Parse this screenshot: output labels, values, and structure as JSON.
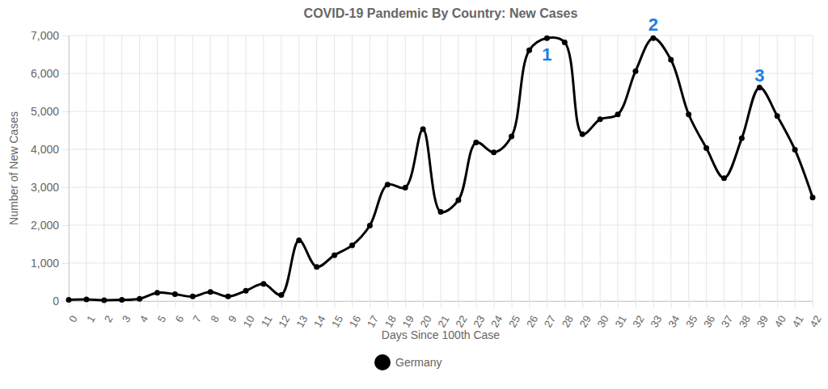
{
  "chart_data": {
    "type": "line",
    "title": "COVID-19 Pandemic By Country: New Cases",
    "x_label": "Days Since 100th Case",
    "y_label": "Number of New Cases",
    "x": [
      0,
      1,
      2,
      3,
      4,
      5,
      6,
      7,
      8,
      9,
      10,
      11,
      12,
      13,
      14,
      15,
      16,
      17,
      18,
      19,
      20,
      21,
      22,
      23,
      24,
      25,
      26,
      27,
      28,
      29,
      30,
      31,
      32,
      33,
      34,
      35,
      36,
      37,
      38,
      39,
      40,
      41,
      42
    ],
    "series": [
      {
        "name": "Germany",
        "color": "#000000",
        "marker": "circle",
        "values": [
          30,
          40,
          20,
          30,
          60,
          220,
          180,
          120,
          240,
          120,
          270,
          450,
          160,
          1600,
          900,
          1210,
          1470,
          1990,
          3070,
          2990,
          4530,
          2350,
          2660,
          4180,
          3920,
          4340,
          6610,
          6930,
          6820,
          4400,
          4790,
          4920,
          6060,
          6930,
          6360,
          4920,
          4030,
          3240,
          4290,
          5630,
          4880,
          3990,
          2730
        ]
      }
    ],
    "xlim": [
      0,
      42
    ],
    "xticks": [
      0,
      1,
      2,
      3,
      4,
      5,
      6,
      7,
      8,
      9,
      10,
      11,
      12,
      13,
      14,
      15,
      16,
      17,
      18,
      19,
      20,
      21,
      22,
      23,
      24,
      25,
      26,
      27,
      28,
      29,
      30,
      31,
      32,
      33,
      34,
      35,
      36,
      37,
      38,
      39,
      40,
      41,
      42
    ],
    "ylim": [
      0,
      7000
    ],
    "yticks": [
      0,
      {
        "value": 1000,
        "label": "1,000"
      },
      {
        "value": 2000,
        "label": "2,000"
      },
      {
        "value": 3000,
        "label": "3,000"
      },
      {
        "value": 4000,
        "label": "4,000"
      },
      {
        "value": 5000,
        "label": "5,000"
      },
      {
        "value": 6000,
        "label": "6,000"
      },
      {
        "value": 7000,
        "label": "7,000"
      }
    ],
    "grid": true,
    "legend": "bottom",
    "annotations": [
      {
        "text": "1",
        "x": 27,
        "y": 6500
      },
      {
        "text": "2",
        "x": 33,
        "y": 7300
      },
      {
        "text": "3",
        "x": 39,
        "y": 5950
      }
    ]
  }
}
